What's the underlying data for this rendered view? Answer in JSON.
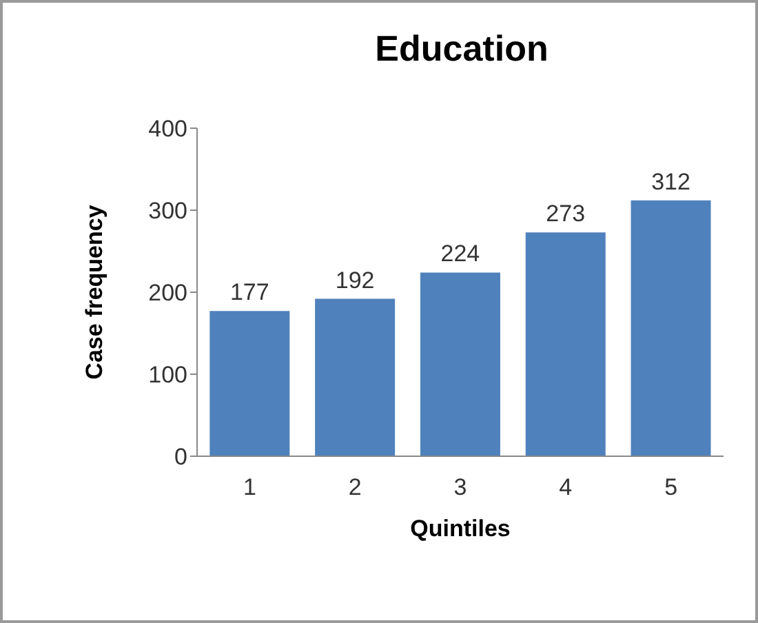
{
  "chart_data": {
    "type": "bar",
    "title": "Education",
    "xlabel": "Quintiles",
    "ylabel": "Case frequency",
    "categories": [
      "1",
      "2",
      "3",
      "4",
      "5"
    ],
    "values": [
      177,
      192,
      224,
      273,
      312
    ],
    "color": "#4f81bd",
    "ylim": [
      0,
      400
    ],
    "yticks": [
      0,
      100,
      200,
      300,
      400
    ],
    "grid": false,
    "data_labels": true
  }
}
